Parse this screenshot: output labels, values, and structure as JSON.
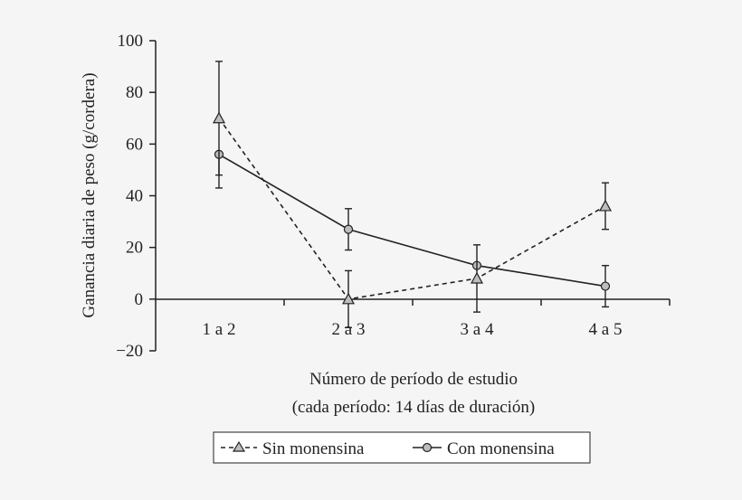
{
  "chart_data": {
    "type": "line",
    "title": "",
    "xlabel": "Número de período de estudio",
    "xlabel_sub": "(cada período: 14 días de duración)",
    "ylabel": "Ganancia diaria de peso (g/cordera)",
    "categories": [
      "1 a 2",
      "2 a 3",
      "3 a 4",
      "4 a 5"
    ],
    "ylim": [
      -20,
      100
    ],
    "yticks": [
      100,
      80,
      60,
      40,
      20,
      0,
      -20
    ],
    "ytick_labels": [
      "100",
      "80",
      "60",
      "40",
      "20",
      "0",
      "−20"
    ],
    "grid": false,
    "legend_position": "bottom",
    "series": [
      {
        "name": "Sin monensina",
        "marker": "triangle",
        "line": "dashed",
        "values": [
          70,
          0,
          8,
          36
        ],
        "err_high": [
          92,
          11,
          21,
          45
        ],
        "err_low": [
          48,
          -11,
          -5,
          27
        ]
      },
      {
        "name": "Con monensina",
        "marker": "circle",
        "line": "solid",
        "values": [
          56,
          27,
          13,
          5
        ],
        "err_high": [
          null,
          35,
          null,
          13
        ],
        "err_low": [
          43,
          19,
          null,
          -3
        ]
      }
    ]
  },
  "legend": {
    "sin_symbol": "-△-",
    "sin_label": "Sin monensina",
    "con_symbol": "–○–",
    "con_label": "Con monensina"
  }
}
